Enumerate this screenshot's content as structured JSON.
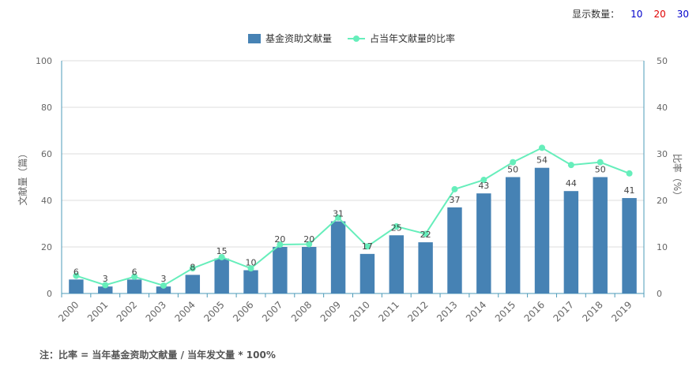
{
  "display_count": {
    "label": "显示数量：",
    "options": [
      {
        "value": "10",
        "color": "#0000cc"
      },
      {
        "value": "20",
        "color": "#e00000"
      },
      {
        "value": "30",
        "color": "#0000cc"
      }
    ]
  },
  "footnote": "注：比率 = 当年基金资助文献量 / 当年发文量 * 100%",
  "colors": {
    "bar": "#4682b4",
    "line": "#66eebb",
    "axis": "#4d9bb8",
    "grid": "#dddddd",
    "text": "#666666",
    "label": "#444444"
  },
  "chart_data": {
    "type": "bar",
    "title": "",
    "categories": [
      "2000",
      "2001",
      "2002",
      "2003",
      "2004",
      "2005",
      "2006",
      "2007",
      "2008",
      "2009",
      "2010",
      "2011",
      "2012",
      "2013",
      "2014",
      "2015",
      "2016",
      "2017",
      "2018",
      "2019"
    ],
    "series": [
      {
        "name": "基金资助文献量",
        "type": "bar",
        "axis": "left",
        "values": [
          6,
          3,
          6,
          3,
          8,
          15,
          10,
          20,
          20,
          31,
          17,
          25,
          22,
          37,
          43,
          50,
          54,
          44,
          50,
          41
        ]
      },
      {
        "name": "占当年文献量的比率",
        "type": "line",
        "axis": "right",
        "values": [
          3.8,
          1.8,
          3.6,
          1.7,
          5.4,
          7.8,
          5.4,
          10.5,
          10.6,
          16.3,
          10.1,
          14.4,
          12.8,
          22.4,
          24.4,
          28.2,
          31.3,
          27.6,
          28.2,
          25.8
        ]
      }
    ],
    "ylabel": "文献量（篇）",
    "y2label": "比率（%）",
    "ylim": [
      0,
      100
    ],
    "y2lim": [
      0,
      50
    ],
    "yticks": [
      "0",
      "20",
      "40",
      "60",
      "80",
      "100"
    ],
    "y2ticks": [
      "0",
      "10",
      "20",
      "30",
      "40",
      "50"
    ],
    "legend": "top-center",
    "grid": true
  }
}
